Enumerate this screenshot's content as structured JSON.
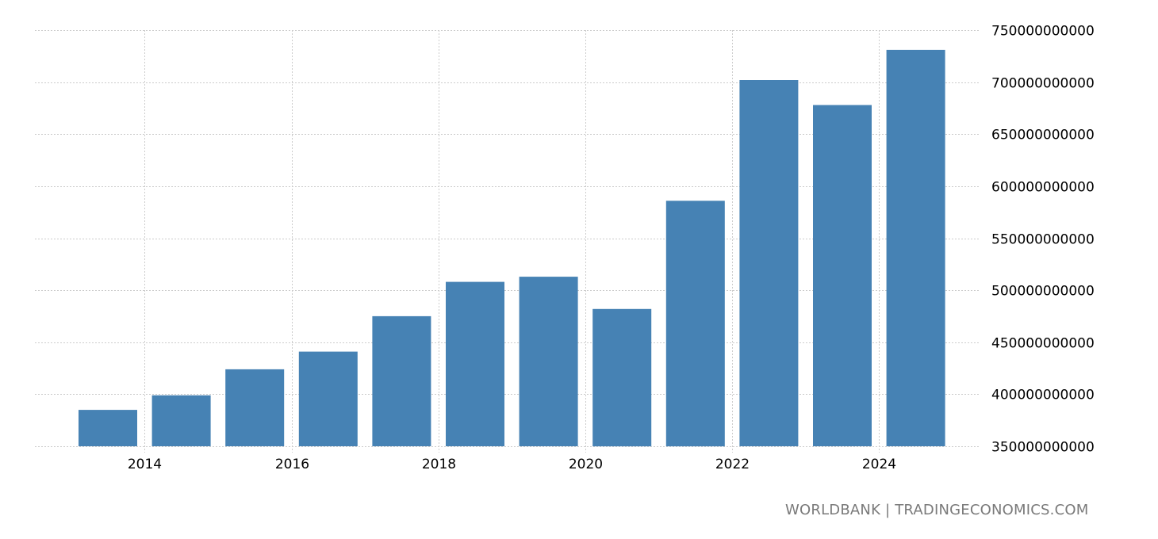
{
  "chart_data": {
    "type": "bar",
    "title": "",
    "xlabel": "",
    "ylabel": "",
    "categories": [
      "2013",
      "2014",
      "2015",
      "2016",
      "2017",
      "2018",
      "2019",
      "2020",
      "2021",
      "2022",
      "2023",
      "2024"
    ],
    "values": [
      385000000000,
      399000000000,
      424000000000,
      441000000000,
      475000000000,
      508000000000,
      513000000000,
      482000000000,
      586000000000,
      702000000000,
      678000000000,
      731000000000
    ],
    "ylim": [
      350000000000,
      750000000000
    ],
    "yticks": [
      "350000000000",
      "400000000000",
      "450000000000",
      "500000000000",
      "550000000000",
      "600000000000",
      "650000000000",
      "700000000000",
      "750000000000"
    ],
    "xticks": [
      "2014",
      "2016",
      "2018",
      "2020",
      "2022",
      "2024"
    ],
    "grid": true,
    "y_axis_position": "right",
    "bar_color": "#4682b4"
  },
  "footer": {
    "source": "WORLDBANK | TRADINGECONOMICS.COM"
  }
}
